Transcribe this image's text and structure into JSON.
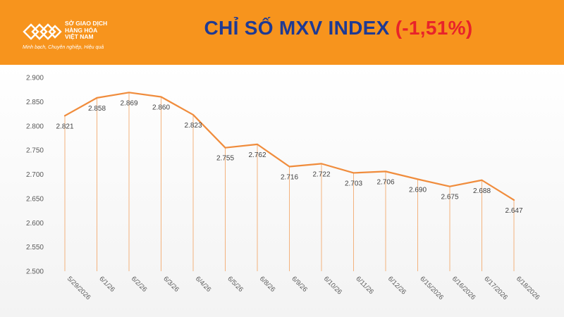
{
  "header": {
    "org_name_lines": [
      "SỞ GIAO DỊCH",
      "HÀNG HÓA",
      "VIỆT NAM"
    ],
    "tagline": "Minh bạch, Chuyên nghiệp, Hiệu quả",
    "title_text": "CHỈ SỐ MXV INDEX",
    "title_change": "(-1,51%)",
    "colors": {
      "banner": "#f7941d",
      "title": "#1f3a93",
      "change": "#e8232a"
    }
  },
  "chart_data": {
    "type": "line",
    "title": "CHỈ SỐ MXV INDEX (-1,51%)",
    "categories": [
      "5/29/2026",
      "6/1/26",
      "6/2/26",
      "6/3/26",
      "6/4/26",
      "6/5/26",
      "6/8/26",
      "6/9/26",
      "6/10/26",
      "6/11/26",
      "6/12/26",
      "6/15/2026",
      "6/16/2026",
      "6/17/2026",
      "6/18/2026"
    ],
    "series": [
      {
        "values": [
          2821,
          2858,
          2869,
          2860,
          2823,
          2755,
          2762,
          2716,
          2722,
          2703,
          2706,
          2690,
          2675,
          2688,
          2647
        ]
      }
    ],
    "data_labels": [
      "2.821",
      "2.858",
      "2.869",
      "2.860",
      "2.823",
      "2.755",
      "2.762",
      "2.716",
      "2.722",
      "2.703",
      "2.706",
      "2.690",
      "2.675",
      "2.688",
      "2.647"
    ],
    "y_ticks": [
      2500,
      2550,
      2600,
      2650,
      2700,
      2750,
      2800,
      2850,
      2900
    ],
    "y_tick_labels": [
      "2.500",
      "2.550",
      "2.600",
      "2.650",
      "2.700",
      "2.750",
      "2.800",
      "2.850",
      "2.900"
    ],
    "ylim": [
      2500,
      2900
    ],
    "grid": false,
    "drop_lines": true,
    "line_color": "#f08c3c",
    "drop_line_color": "#f3b27d"
  }
}
